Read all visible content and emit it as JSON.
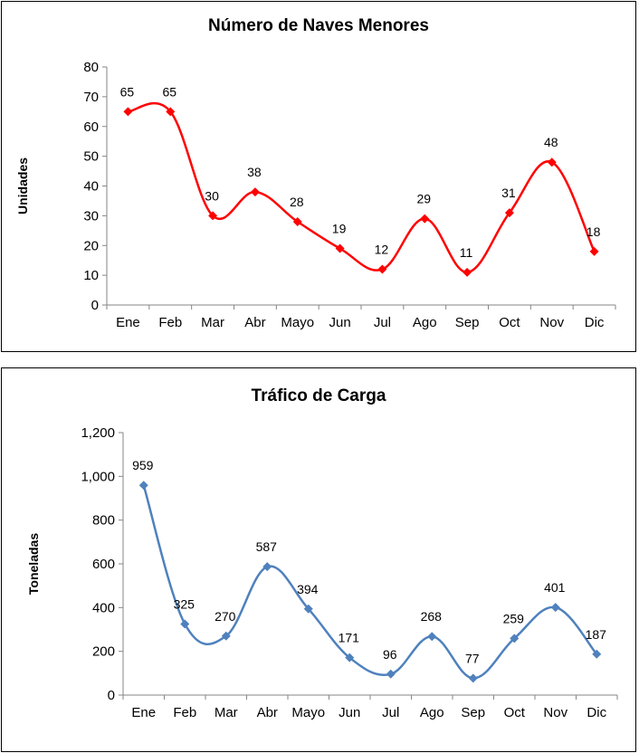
{
  "chart_data": [
    {
      "type": "line",
      "title": "Número de Naves Menores",
      "ylabel": "Unidades",
      "xlabel": "",
      "categories": [
        "Ene",
        "Feb",
        "Mar",
        "Abr",
        "Mayo",
        "Jun",
        "Jul",
        "Ago",
        "Sep",
        "Oct",
        "Nov",
        "Dic"
      ],
      "values": [
        65,
        65,
        30,
        38,
        28,
        19,
        12,
        29,
        11,
        31,
        48,
        18
      ],
      "data_labels": [
        "65",
        "65",
        "30",
        "38",
        "28",
        "19",
        "12",
        "29",
        "11",
        "31",
        "48",
        "18"
      ],
      "yticks": [
        0,
        10,
        20,
        30,
        40,
        50,
        60,
        70,
        80
      ],
      "ytick_labels": [
        "0",
        "10",
        "20",
        "30",
        "40",
        "50",
        "60",
        "70",
        "80"
      ],
      "ylim": [
        0,
        80
      ],
      "color": "#ff0000",
      "marker": "diamond",
      "smooth": true,
      "grid": false
    },
    {
      "type": "line",
      "title": "Tráfico de Carga",
      "ylabel": "Toneladas",
      "xlabel": "",
      "categories": [
        "Ene",
        "Feb",
        "Mar",
        "Abr",
        "Mayo",
        "Jun",
        "Jul",
        "Ago",
        "Sep",
        "Oct",
        "Nov",
        "Dic"
      ],
      "values": [
        959,
        325,
        270,
        587,
        394,
        171,
        96,
        268,
        77,
        259,
        401,
        187
      ],
      "data_labels": [
        "959",
        "325",
        "270",
        "587",
        "394",
        "171",
        "96",
        "268",
        "77",
        "259",
        "401",
        "187"
      ],
      "yticks": [
        0,
        200,
        400,
        600,
        800,
        1000,
        1200
      ],
      "ytick_labels": [
        "0",
        "200",
        "400",
        "600",
        "800",
        "1,000",
        "1,200"
      ],
      "ylim": [
        0,
        1200
      ],
      "color": "#4f81bd",
      "marker": "diamond",
      "smooth": true,
      "grid": false
    }
  ]
}
